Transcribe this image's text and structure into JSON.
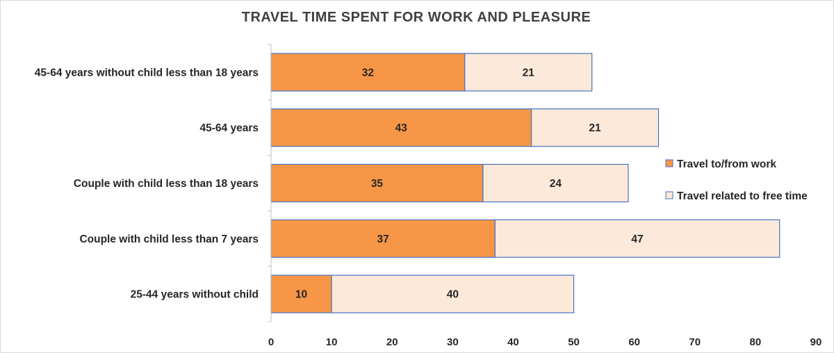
{
  "chart_data": {
    "type": "bar",
    "orientation": "horizontal",
    "stacked": true,
    "title": "TRAVEL TIME SPENT FOR WORK AND PLEASURE",
    "xlabel": "",
    "ylabel": "",
    "categories": [
      "45-64 years without child less than 18 years",
      "45-64 years",
      "Couple with child less than 18 years",
      "Couple with child less than 7 years",
      "25-44 years without child"
    ],
    "series": [
      {
        "name": "Travel to/from work",
        "values": [
          32,
          43,
          35,
          37,
          10
        ],
        "color": "#F79646"
      },
      {
        "name": "Travel related to free time",
        "values": [
          21,
          21,
          24,
          47,
          40
        ],
        "color": "#FDE9D9"
      }
    ],
    "xlim": [
      0,
      90
    ],
    "xticks": [
      0,
      10,
      20,
      30,
      40,
      50,
      60,
      70,
      80,
      90
    ],
    "grid": false,
    "legend": "right",
    "bar_border_color": "#4472C4"
  }
}
